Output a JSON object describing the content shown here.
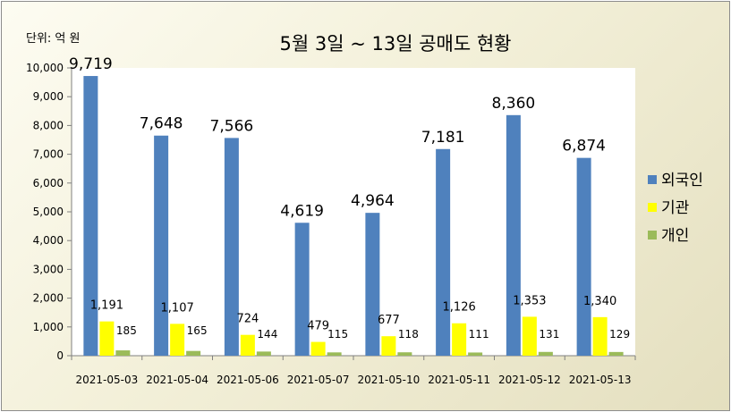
{
  "chart_data": {
    "type": "bar",
    "title": "5월 3일 ~ 13일  공매도 현황",
    "unit_label": "단위: 억 원",
    "categories": [
      "2021-05-03",
      "2021-05-04",
      "2021-05-06",
      "2021-05-07",
      "2021-05-10",
      "2021-05-11",
      "2021-05-12",
      "2021-05-13"
    ],
    "series": [
      {
        "name": "외국인",
        "color": "#4f81bd",
        "values": [
          9719,
          7648,
          7566,
          4619,
          4964,
          7181,
          8360,
          6874
        ],
        "labels": [
          "9,719",
          "7,648",
          "7,566",
          "4,619",
          "4,964",
          "7,181",
          "8,360",
          "6,874"
        ]
      },
      {
        "name": "기관",
        "color": "#ffff00",
        "values": [
          1191,
          1107,
          724,
          479,
          677,
          1126,
          1353,
          1340
        ],
        "labels": [
          "1,191",
          "1,107",
          "724",
          "479",
          "677",
          "1,126",
          "1,353",
          "1,340"
        ]
      },
      {
        "name": "개인",
        "color": "#9bbb59",
        "values": [
          185,
          165,
          144,
          115,
          118,
          111,
          131,
          129
        ],
        "labels": [
          "185",
          "165",
          "144",
          "115",
          "118",
          "111",
          "131",
          "129"
        ]
      }
    ],
    "ylim": [
      0,
      10000
    ],
    "yticks": [
      "0",
      "1,000",
      "2,000",
      "3,000",
      "4,000",
      "5,000",
      "6,000",
      "7,000",
      "8,000",
      "9,000",
      "10,000"
    ],
    "grid": false,
    "legend_position": "right"
  }
}
